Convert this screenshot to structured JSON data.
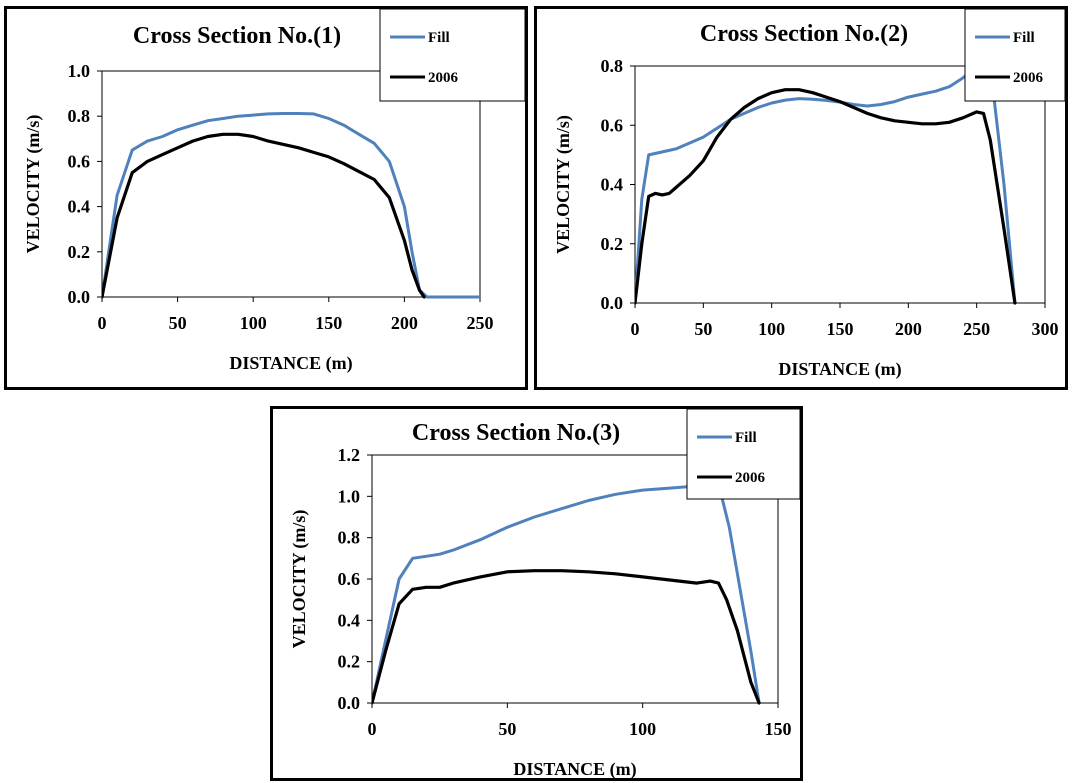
{
  "chart_data": [
    {
      "type": "line",
      "title": "Cross Section No.(1)",
      "xlabel": "DISTANCE  (m)",
      "ylabel": "VELOCITY (m/s)",
      "xlim": [
        0,
        250
      ],
      "ylim": [
        0.0,
        1.0
      ],
      "xticks": [
        "0",
        "50",
        "100",
        "150",
        "200",
        "250"
      ],
      "yticks": [
        "0.0",
        "0.2",
        "0.4",
        "0.6",
        "0.8",
        "1.0"
      ],
      "grid": false,
      "legend_position": "top-right",
      "series": [
        {
          "name": "Fill",
          "color": "#4f81bd",
          "x": [
            0,
            10,
            20,
            30,
            40,
            50,
            60,
            70,
            80,
            90,
            100,
            110,
            120,
            130,
            140,
            150,
            160,
            170,
            180,
            190,
            200,
            205,
            210,
            215,
            225,
            235,
            250
          ],
          "y": [
            0.0,
            0.45,
            0.65,
            0.69,
            0.71,
            0.74,
            0.76,
            0.78,
            0.79,
            0.8,
            0.805,
            0.81,
            0.812,
            0.812,
            0.81,
            0.79,
            0.76,
            0.72,
            0.68,
            0.6,
            0.4,
            0.2,
            0.03,
            0.0,
            0.0,
            0.0,
            0.0
          ]
        },
        {
          "name": "2006",
          "color": "#000000",
          "x": [
            0,
            10,
            20,
            30,
            40,
            50,
            60,
            70,
            80,
            90,
            100,
            110,
            120,
            130,
            140,
            150,
            160,
            170,
            180,
            190,
            200,
            205,
            210,
            213
          ],
          "y": [
            0.0,
            0.35,
            0.55,
            0.6,
            0.63,
            0.66,
            0.69,
            0.71,
            0.72,
            0.72,
            0.71,
            0.69,
            0.675,
            0.66,
            0.64,
            0.62,
            0.59,
            0.555,
            0.52,
            0.44,
            0.25,
            0.12,
            0.03,
            0.0
          ]
        }
      ]
    },
    {
      "type": "line",
      "title": "Cross Section No.(2)",
      "xlabel": "DISTANCE  (m)",
      "ylabel": "VELOCITY (m/s)",
      "xlim": [
        0,
        300
      ],
      "ylim": [
        0.0,
        0.8
      ],
      "xticks": [
        "0",
        "50",
        "100",
        "150",
        "200",
        "250",
        "300"
      ],
      "yticks": [
        "0.0",
        "0.2",
        "0.4",
        "0.6",
        "0.8"
      ],
      "grid": false,
      "legend_position": "top-right",
      "series": [
        {
          "name": "Fill",
          "color": "#4f81bd",
          "x": [
            0,
            5,
            10,
            20,
            30,
            40,
            50,
            60,
            70,
            80,
            90,
            100,
            110,
            120,
            130,
            140,
            150,
            160,
            170,
            180,
            190,
            200,
            210,
            220,
            230,
            240,
            250,
            260,
            270,
            278
          ],
          "y": [
            0.0,
            0.35,
            0.5,
            0.51,
            0.52,
            0.54,
            0.56,
            0.59,
            0.62,
            0.64,
            0.66,
            0.675,
            0.685,
            0.69,
            0.688,
            0.684,
            0.678,
            0.67,
            0.665,
            0.67,
            0.68,
            0.695,
            0.705,
            0.715,
            0.73,
            0.76,
            0.8,
            0.8,
            0.4,
            0.0
          ]
        },
        {
          "name": "2006",
          "color": "#000000",
          "x": [
            0,
            5,
            10,
            15,
            20,
            25,
            30,
            40,
            50,
            60,
            70,
            80,
            90,
            100,
            110,
            120,
            130,
            140,
            150,
            160,
            170,
            180,
            190,
            200,
            210,
            220,
            230,
            240,
            250,
            255,
            260,
            270,
            278
          ],
          "y": [
            0.0,
            0.2,
            0.36,
            0.37,
            0.365,
            0.37,
            0.39,
            0.43,
            0.48,
            0.56,
            0.62,
            0.66,
            0.69,
            0.71,
            0.72,
            0.72,
            0.71,
            0.695,
            0.68,
            0.66,
            0.64,
            0.625,
            0.615,
            0.61,
            0.605,
            0.605,
            0.61,
            0.625,
            0.645,
            0.64,
            0.55,
            0.25,
            0.0
          ]
        }
      ]
    },
    {
      "type": "line",
      "title": "Cross Section No.(3)",
      "xlabel": "DISTANCE  (m)",
      "ylabel": "VELOCITY (m/s)",
      "xlim": [
        0,
        150
      ],
      "ylim": [
        0.0,
        1.2
      ],
      "xticks": [
        "0",
        "50",
        "100",
        "150"
      ],
      "yticks": [
        "0.0",
        "0.2",
        "0.4",
        "0.6",
        "0.8",
        "1.0",
        "1.2"
      ],
      "grid": false,
      "legend_position": "top-right",
      "series": [
        {
          "name": "Fill",
          "color": "#4f81bd",
          "x": [
            0,
            5,
            10,
            15,
            20,
            25,
            30,
            40,
            50,
            60,
            70,
            80,
            90,
            100,
            110,
            120,
            125,
            128,
            132,
            136,
            140,
            143
          ],
          "y": [
            0.0,
            0.3,
            0.6,
            0.7,
            0.71,
            0.72,
            0.74,
            0.79,
            0.85,
            0.9,
            0.94,
            0.98,
            1.01,
            1.03,
            1.04,
            1.05,
            1.05,
            1.06,
            0.85,
            0.55,
            0.25,
            0.0
          ]
        },
        {
          "name": "2006",
          "color": "#000000",
          "x": [
            0,
            5,
            10,
            15,
            20,
            25,
            30,
            40,
            50,
            60,
            70,
            80,
            90,
            100,
            110,
            120,
            125,
            128,
            131,
            135,
            140,
            143
          ],
          "y": [
            0.0,
            0.25,
            0.48,
            0.55,
            0.56,
            0.56,
            0.58,
            0.61,
            0.635,
            0.64,
            0.64,
            0.635,
            0.625,
            0.61,
            0.595,
            0.58,
            0.59,
            0.58,
            0.5,
            0.35,
            0.1,
            0.0
          ]
        }
      ]
    }
  ]
}
